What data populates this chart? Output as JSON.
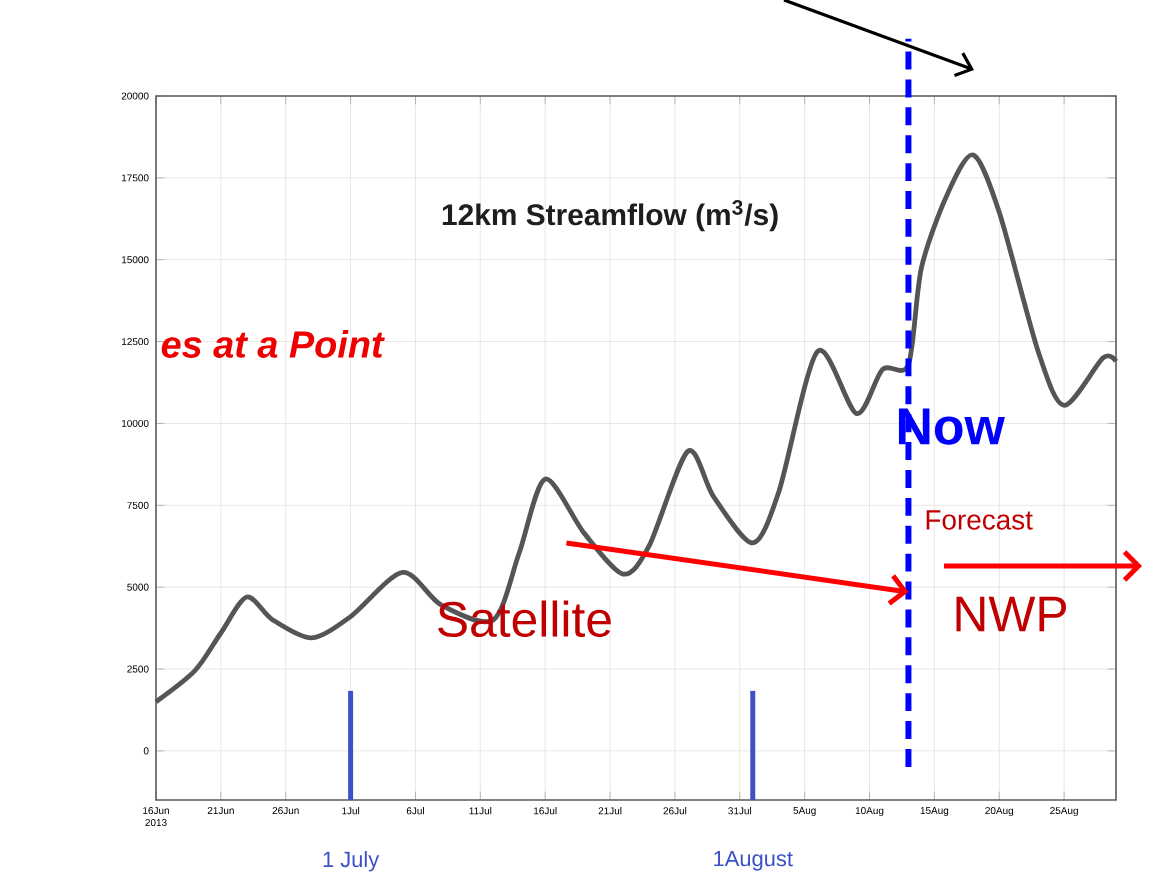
{
  "chart_data": {
    "type": "line",
    "title": "12km Streamflow (m$^{3}$/s)",
    "x": [
      "2013-06-16",
      "2013-06-19",
      "2013-06-21",
      "2013-06-23",
      "2013-06-25",
      "2013-06-28",
      "2013-07-01",
      "2013-07-05",
      "2013-07-08",
      "2013-07-12",
      "2013-07-14",
      "2013-07-16",
      "2013-07-19",
      "2013-07-22",
      "2013-07-24",
      "2013-07-27",
      "2013-07-29",
      "2013-08-01",
      "2013-08-03",
      "2013-08-06",
      "2013-08-09",
      "2013-08-11",
      "2013-08-13",
      "2013-08-14",
      "2013-08-16",
      "2013-08-18",
      "2013-08-20",
      "2013-08-23",
      "2013-08-25",
      "2013-08-28",
      "2013-08-29"
    ],
    "series": [
      {
        "color": "#555555",
        "values": [
          1500,
          2450,
          3600,
          4700,
          4000,
          3450,
          4100,
          5450,
          4450,
          4000,
          6050,
          8300,
          6650,
          5400,
          6250,
          9150,
          7750,
          6350,
          7900,
          12200,
          10300,
          11650,
          11800,
          14750,
          17000,
          18200,
          16450,
          12200,
          10550,
          12000,
          11900
        ]
      }
    ],
    "xlim": [
      "2013-06-16",
      "2013-08-29"
    ],
    "xticks": [
      {
        "value": "2013-06-16",
        "label": "16Jun 2013"
      },
      {
        "value": "2013-06-21",
        "label": "21Jun"
      },
      {
        "value": "2013-06-26",
        "label": "26Jun"
      },
      {
        "value": "2013-07-01",
        "label": "1Jul"
      },
      {
        "value": "2013-07-06",
        "label": "6Jul"
      },
      {
        "value": "2013-07-11",
        "label": "11Jul"
      },
      {
        "value": "2013-07-16",
        "label": "16Jul"
      },
      {
        "value": "2013-07-21",
        "label": "21Jul"
      },
      {
        "value": "2013-07-26",
        "label": "26Jul"
      },
      {
        "value": "2013-07-31",
        "label": "31Jul"
      },
      {
        "value": "2013-08-05",
        "label": "5Aug"
      },
      {
        "value": "2013-08-10",
        "label": "10Aug"
      },
      {
        "value": "2013-08-15",
        "label": "15Aug"
      },
      {
        "value": "2013-08-20",
        "label": "20Aug"
      },
      {
        "value": "2013-08-25",
        "label": "25Aug"
      }
    ],
    "ylim": [
      -1500,
      20000
    ],
    "yticks": [
      0,
      2500,
      5000,
      7500,
      10000,
      12500,
      15000,
      17500,
      20000
    ],
    "grid": true,
    "ref_lines": [
      {
        "axis": "x",
        "value": "2013-08-13",
        "label": "Now",
        "color": "#0000ff",
        "line_style": "dashed"
      },
      {
        "axis": "x",
        "value": "2013-07-01",
        "label": "1 July",
        "color": "#3c50c8"
      },
      {
        "axis": "x",
        "value": "2013-08-01",
        "label": "1August",
        "color": "#3c50c8"
      }
    ],
    "annotations": [
      "es at a Point",
      {
        "text": "Satellite",
        "x": "2013-08-13",
        "y": 4850
      },
      "Forecast",
      "NWP"
    ]
  }
}
